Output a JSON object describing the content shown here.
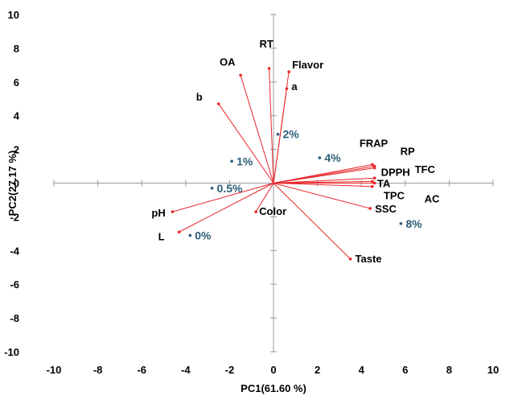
{
  "chart_data": {
    "type": "scatter",
    "title": "",
    "xlabel": "PC1(61.60 %)",
    "ylabel": "PC2(27.17 %)",
    "xlim": [
      -10,
      10
    ],
    "ylim": [
      -10,
      10
    ],
    "x_ticks": [
      -10,
      -8,
      -6,
      -4,
      -2,
      0,
      2,
      4,
      6,
      8,
      10
    ],
    "y_ticks": [
      -10,
      -8,
      -6,
      -4,
      -2,
      0,
      2,
      4,
      6,
      8,
      10
    ],
    "grid": false,
    "colors": {
      "loading": "#e8272a",
      "score": "#2e5e78",
      "axis": "#9a9a9a",
      "text": "#000000"
    },
    "loadings": [
      {
        "name": "RT",
        "x": -0.2,
        "y": 6.8
      },
      {
        "name": "OA",
        "x": -1.5,
        "y": 6.4
      },
      {
        "name": "Flavor",
        "x": 0.7,
        "y": 6.6
      },
      {
        "name": "a",
        "x": 0.6,
        "y": 5.6
      },
      {
        "name": "b",
        "x": -2.5,
        "y": 4.7
      },
      {
        "name": "FRAP",
        "x": 4.5,
        "y": 1.1
      },
      {
        "name": "RP",
        "x": 4.6,
        "y": 1.0
      },
      {
        "name": "DPPH",
        "x": 4.6,
        "y": 0.9
      },
      {
        "name": "TFC",
        "x": 4.6,
        "y": 0.3
      },
      {
        "name": "TA",
        "x": 4.5,
        "y": 0.1
      },
      {
        "name": "AC",
        "x": 4.6,
        "y": 0.0
      },
      {
        "name": "TPC",
        "x": 4.5,
        "y": -0.2
      },
      {
        "name": "SSC",
        "x": 4.4,
        "y": -1.5
      },
      {
        "name": "Taste",
        "x": 3.5,
        "y": -4.5
      },
      {
        "name": "Color",
        "x": -0.8,
        "y": -1.7
      },
      {
        "name": "pH",
        "x": -4.6,
        "y": -1.7
      },
      {
        "name": "L",
        "x": -4.3,
        "y": -2.9
      }
    ],
    "scores": [
      {
        "name": "0%",
        "x": -3.8,
        "y": -3.1
      },
      {
        "name": "0.5%",
        "x": -2.8,
        "y": -0.3
      },
      {
        "name": "1%",
        "x": -1.9,
        "y": 1.3
      },
      {
        "name": "2%",
        "x": 0.2,
        "y": 2.9
      },
      {
        "name": "4%",
        "x": 2.1,
        "y": 1.5
      },
      {
        "name": "8%",
        "x": 5.8,
        "y": -2.4
      }
    ]
  }
}
